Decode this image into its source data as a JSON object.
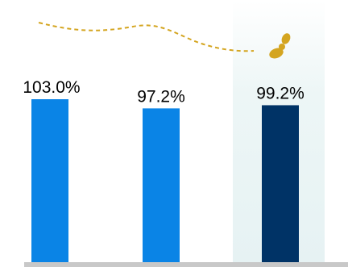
{
  "chart_data": {
    "type": "bar",
    "categories": [
      "",
      "",
      ""
    ],
    "values": [
      103.0,
      97.2,
      99.2
    ],
    "value_labels": [
      "103.0%",
      "97.2%",
      "99.2%"
    ],
    "bar_colors": [
      "#0a84e6",
      "#0a84e6",
      "#003366"
    ],
    "highlight_index": 2,
    "highlight_panel_color": "#e8f4f4",
    "decoration_color": "#d4a520",
    "axis_color": "#c8c8c8",
    "title": "",
    "xlabel": "",
    "ylabel": "",
    "ylim": [
      0,
      103.0
    ],
    "grid": false,
    "legend": "none"
  }
}
